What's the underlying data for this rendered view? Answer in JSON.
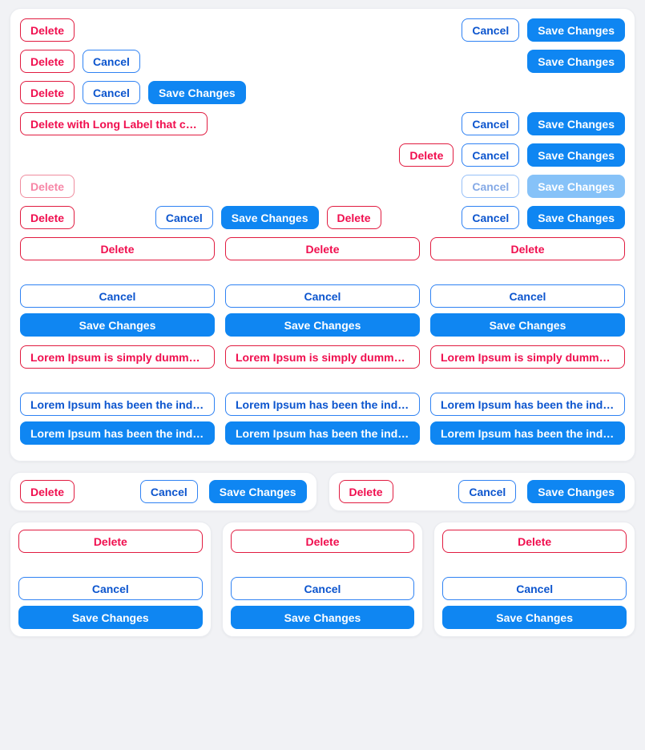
{
  "colors": {
    "page_bg": "#f1f2f5",
    "card_bg": "#ffffff",
    "card_border": "#eaecf0",
    "danger_text": "#f00f4f",
    "danger_border": "#e11b40",
    "primary": "#0f86f2",
    "primary_text": "#ffffff",
    "cancel_text": "#0c55ce",
    "cancel_border": "#2f82f3"
  },
  "labels": {
    "delete": "Delete",
    "cancel": "Cancel",
    "save": "Save Changes",
    "delete_long": "Delete with Long Label that ca…",
    "lorem_danger": "Lorem Ipsum is simply dummy t…",
    "lorem_outline": "Lorem Ipsum has been the indus…",
    "lorem_primary": "Lorem Ipsum has been the indus…"
  },
  "states": {
    "disabled_row": {
      "buttons": [
        "Delete",
        "Cancel",
        "Save Changes"
      ],
      "disabled": true
    }
  }
}
